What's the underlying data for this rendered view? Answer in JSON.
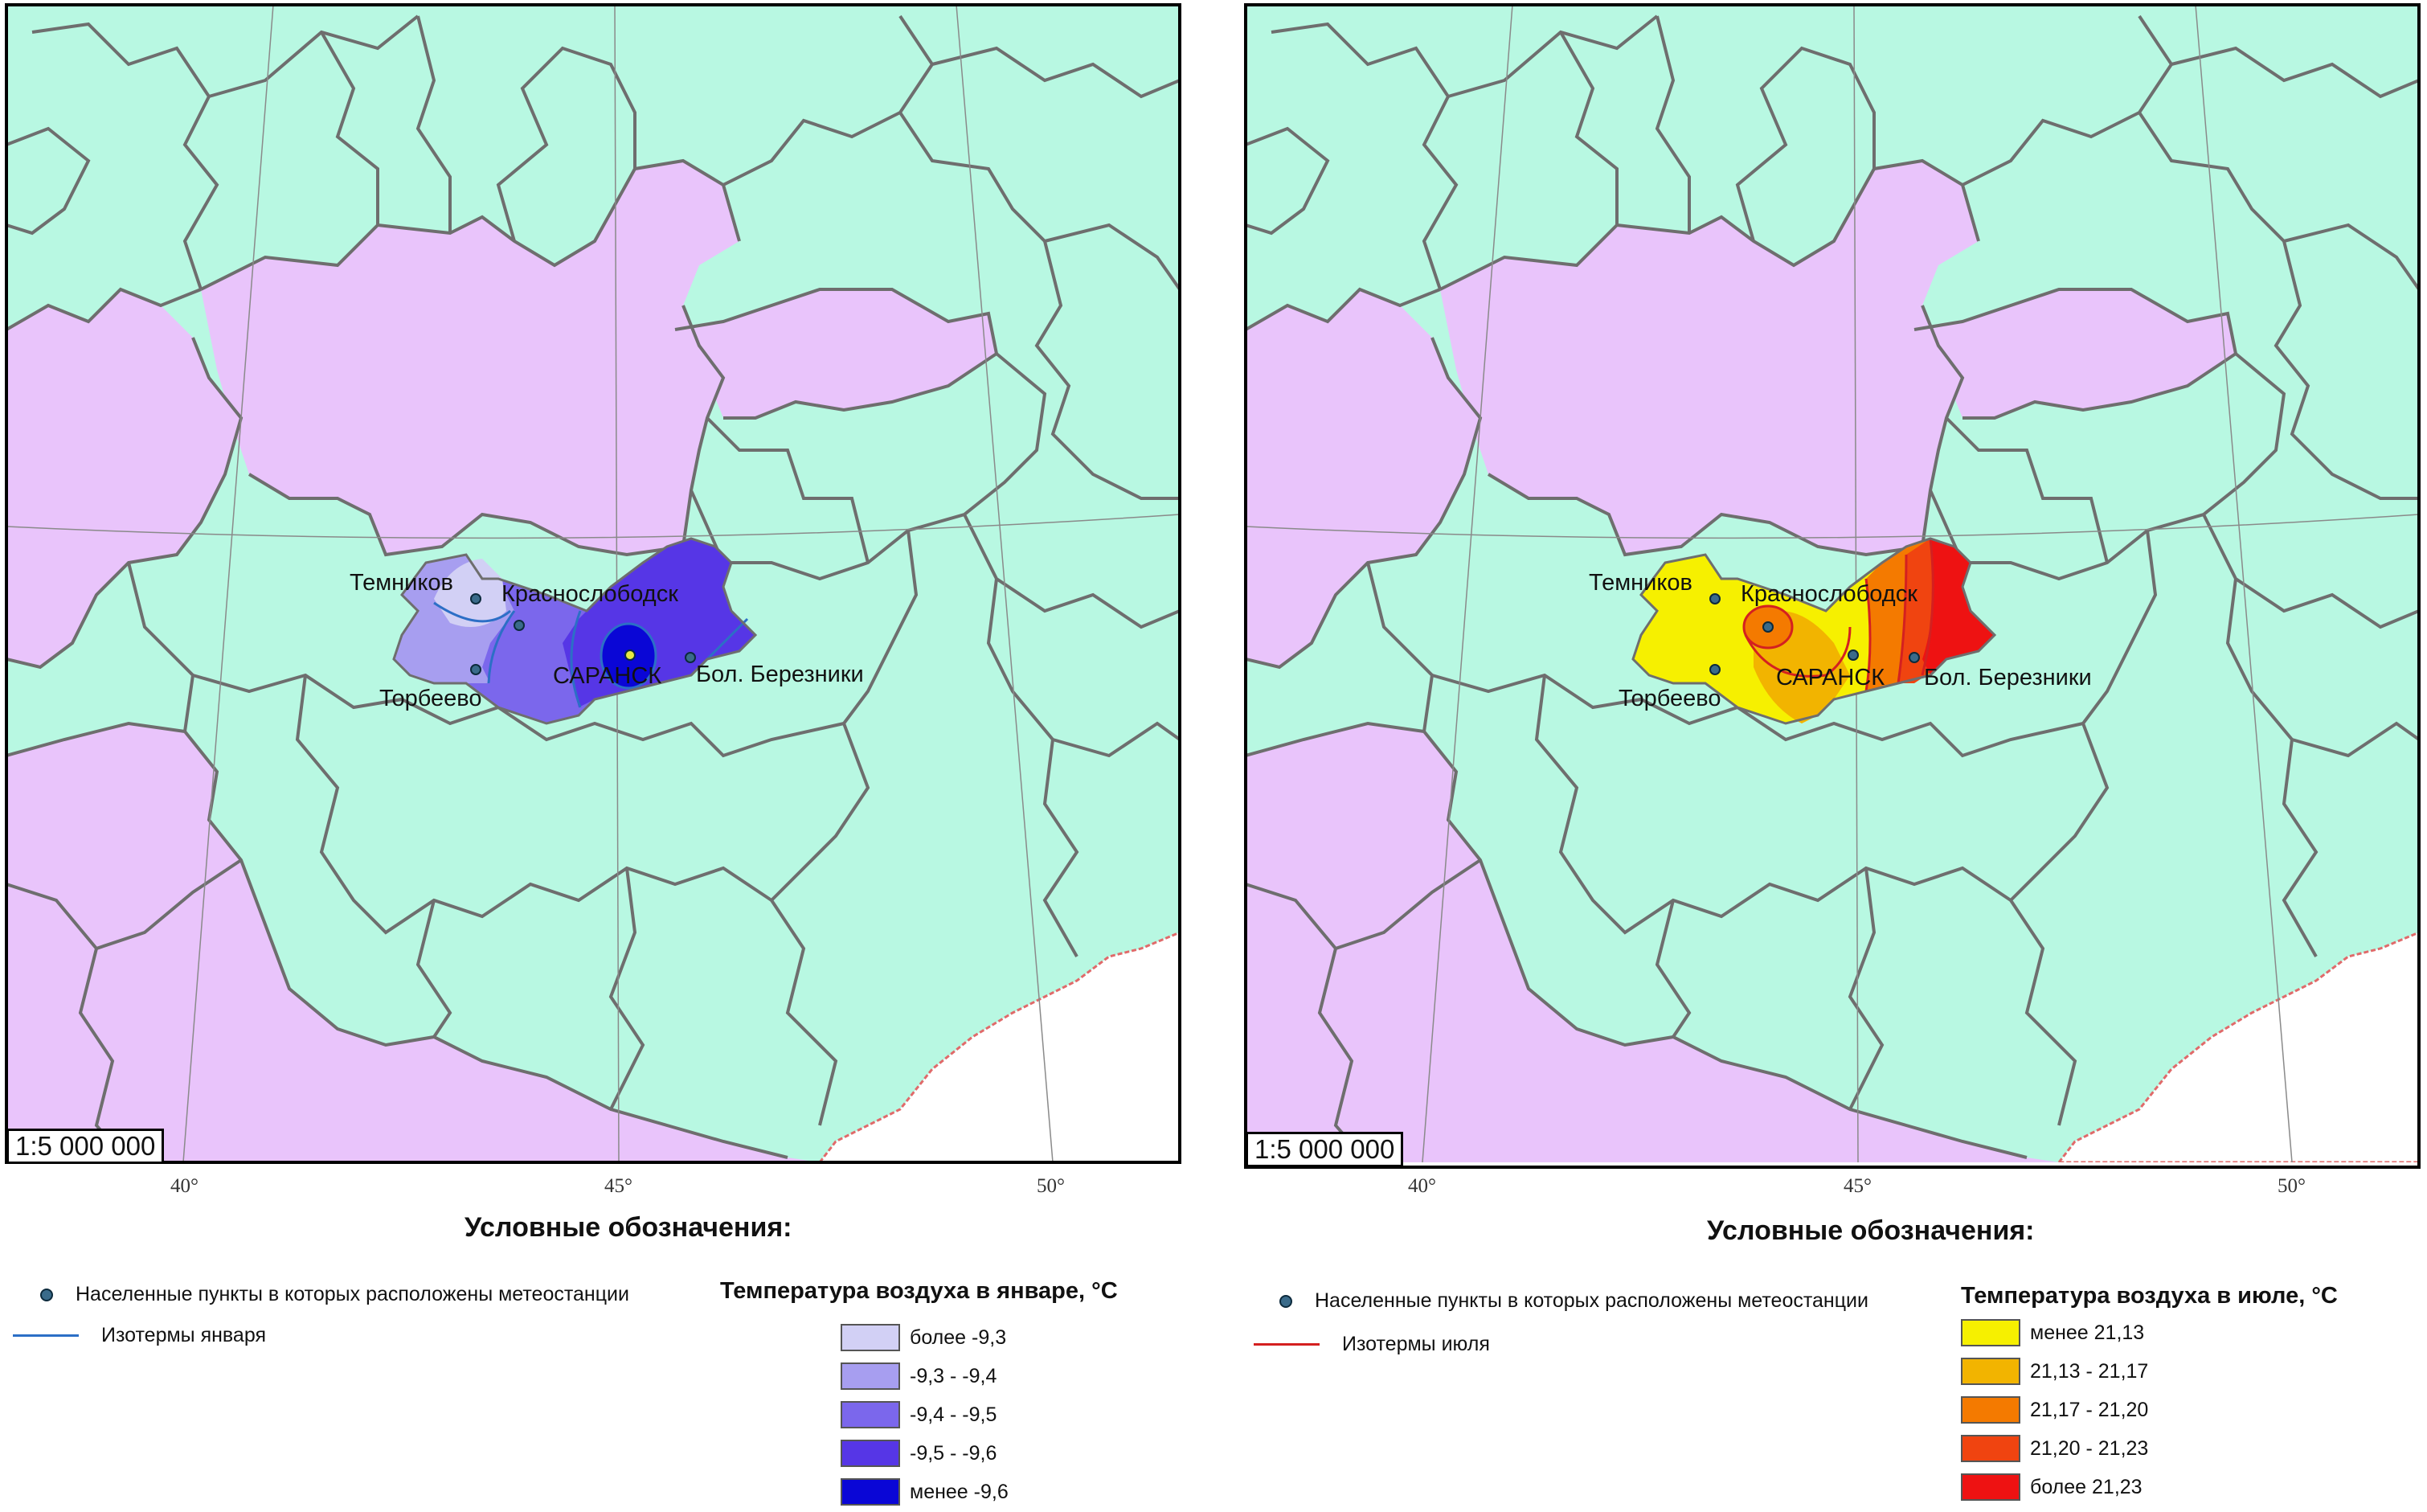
{
  "maps": [
    {
      "scale": "1:5 000 000",
      "longitudes": [
        "40°",
        "45°",
        "50°"
      ],
      "cities": {
        "temnikov": "Темников",
        "krasnoslobodsk": "Краснослободск",
        "saransk": "САРАНСК",
        "berezniki": "Бол. Березники",
        "torbeevo": "Торбеево"
      },
      "legend_title": "Условные обозначения:",
      "legend_stations": "Населенные пункты в которых расположены метеостанции",
      "legend_isotherm": "Изотермы января",
      "temp_title": "Температура воздуха в январе, °С",
      "classes": [
        {
          "label": "более -9,3",
          "color": "#d2d0f5"
        },
        {
          "label": "-9,3 - -9,4",
          "color": "#a79ef0"
        },
        {
          "label": "-9,4 - -9,5",
          "color": "#7b67ec"
        },
        {
          "label": "-9,5 - -9,6",
          "color": "#5636e6"
        },
        {
          "label": "менее -9,6",
          "color": "#0a06d6"
        }
      ],
      "isotherm_color": "#2c6fc6"
    },
    {
      "scale": "1:5 000 000",
      "longitudes": [
        "40°",
        "45°",
        "50°"
      ],
      "cities": {
        "temnikov": "Темников",
        "krasnoslobodsk": "Краснослободск",
        "saransk": "САРАНСК",
        "berezniki": "Бол. Березники",
        "torbeevo": "Торбеево"
      },
      "legend_title": "Условные обозначения:",
      "legend_stations": "Населенные пункты в которых расположены метеостанции",
      "legend_isotherm": "Изотермы июля",
      "temp_title": "Температура воздуха в июле, °С",
      "classes": [
        {
          "label": "менее 21,13",
          "color": "#f6f000"
        },
        {
          "label": "21,13 - 21,17",
          "color": "#f2b400"
        },
        {
          "label": "21,17 - 21,20",
          "color": "#f47a00"
        },
        {
          "label": "21,20 - 21,23",
          "color": "#f04410"
        },
        {
          "label": "более 21,23",
          "color": "#ee1212"
        }
      ],
      "isotherm_color": "#d42020"
    }
  ],
  "colors": {
    "sea_green": "#b8f8e2",
    "pink": "#e9c4fb",
    "border": "#6e6e6e",
    "foreign_border": "#e06a6a"
  }
}
